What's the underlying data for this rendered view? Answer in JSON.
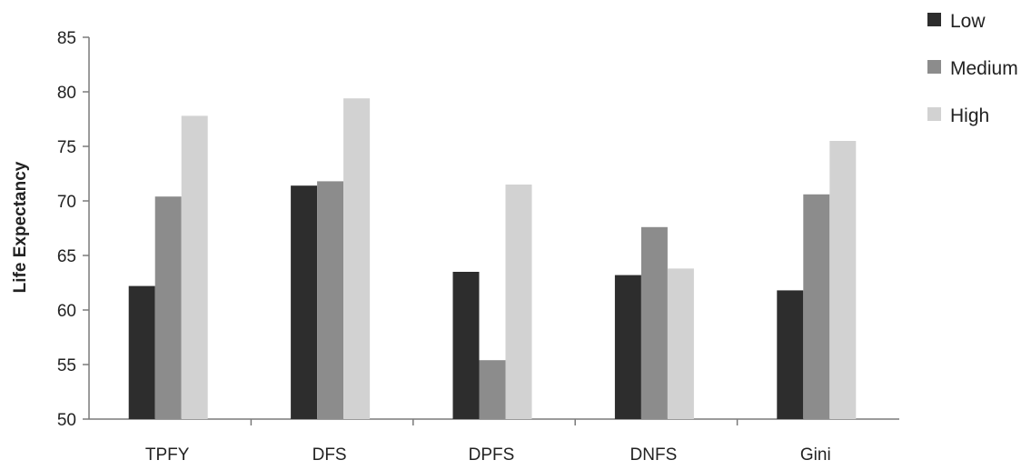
{
  "chart_data": {
    "type": "bar",
    "title": "",
    "xlabel": "",
    "ylabel": "Life Expectancy",
    "ylim": [
      50,
      85
    ],
    "yticks": [
      50,
      55,
      60,
      65,
      70,
      75,
      80,
      85
    ],
    "grid": false,
    "legend_position": "top-right",
    "categories": [
      "TPFY",
      "DFS",
      "DPFS",
      "DNFS",
      "Gini"
    ],
    "series": [
      {
        "name": "Low",
        "color": "#2d2d2d",
        "values": [
          62.2,
          71.4,
          63.5,
          63.2,
          61.8
        ]
      },
      {
        "name": "Medium",
        "color": "#8c8c8c",
        "values": [
          70.4,
          71.8,
          55.4,
          67.6,
          70.6
        ]
      },
      {
        "name": "High",
        "color": "#d2d2d2",
        "values": [
          77.8,
          79.4,
          71.5,
          63.8,
          75.5
        ]
      }
    ]
  }
}
